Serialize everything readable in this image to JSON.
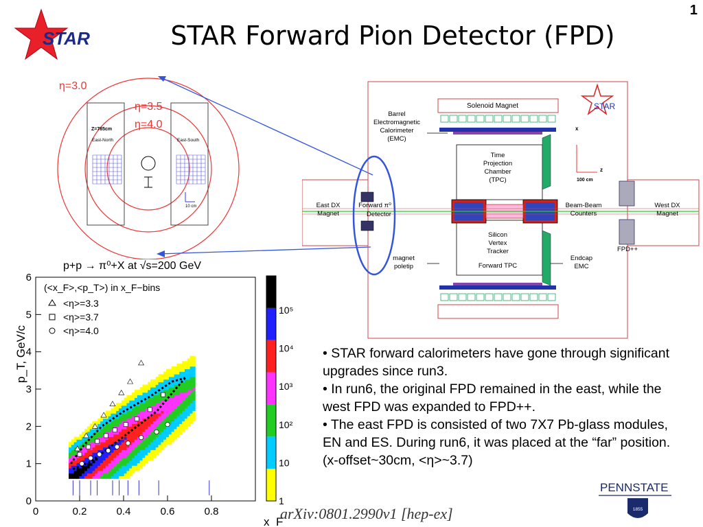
{
  "slide_number": "1",
  "title": "STAR Forward Pion Detector (FPD)",
  "logo_text": "STAR",
  "eta_figure": {
    "outer_label": "η=3.0",
    "middle_label": "η=3.5",
    "inner_label": "η=4.0",
    "z_label": "Z=785cm",
    "east_north": "East-North",
    "east_south": "East-South",
    "scale": "10 cm"
  },
  "detector": {
    "solenoid": "Solenoid Magnet",
    "barrel_emc": [
      "Barrel",
      "Electromagnetic",
      "Calorimeter",
      "(EMC)"
    ],
    "tpc": [
      "Time",
      "Projection",
      "Chamber",
      "(TPC)"
    ],
    "east_dx": [
      "East DX",
      "Magnet"
    ],
    "forward_detector": [
      "Forward π⁰",
      "Detector"
    ],
    "bbc": [
      "Beam-Beam",
      "Counters"
    ],
    "west_dx": [
      "West DX",
      "Magnet"
    ],
    "svt": [
      "Silicon",
      "Vertex",
      "Tracker"
    ],
    "ftpc": "Forward TPC",
    "poletip": [
      "magnet",
      "poletip"
    ],
    "endcap": [
      "Endcap",
      "EMC"
    ],
    "fpdpp": "FPD++",
    "axis_x": "x",
    "axis_z": "z",
    "scale": "100 cm",
    "star": "STAR"
  },
  "plot": {
    "title": "p+p → π⁰+X at √s=200 GeV",
    "legend_header": "(<x_F>,<p_T>) in x_F−bins",
    "legend_items": [
      {
        "symbol": "triangle",
        "label": "<η>=3.3"
      },
      {
        "symbol": "square",
        "label": "<η>=3.7"
      },
      {
        "symbol": "circle",
        "label": "<η>=4.0"
      }
    ],
    "xlabel": "x_F",
    "ylabel": "p_T, GeV/c",
    "x_ticks": [
      "0",
      "0.2",
      "0.4",
      "0.6",
      "0.8"
    ],
    "y_ticks": [
      "0",
      "1",
      "2",
      "3",
      "4",
      "5",
      "6"
    ],
    "colorbar_labels": [
      "1",
      "10",
      "10²",
      "10³",
      "10⁴",
      "10⁵"
    ],
    "colors": {
      "band_1": "#ffff00",
      "band_2": "#00ccff",
      "band_3": "#22cc22",
      "band_4": "#ff33ff",
      "band_5": "#ff2020",
      "band_6": "#2020ff",
      "band_7": "#000000"
    }
  },
  "chart_data": {
    "type": "heatmap",
    "title": "p+p → π⁰+X at √s=200 GeV",
    "xlabel": "x_F",
    "ylabel": "p_T, GeV/c",
    "xlim": [
      0,
      1.0
    ],
    "ylim": [
      0,
      6
    ],
    "colorbar_scale": "log",
    "colorbar_range": [
      1,
      1000000
    ],
    "series": [
      {
        "name": "<η>=3.3",
        "marker": "triangle",
        "x": [
          0.19,
          0.23,
          0.27,
          0.31,
          0.35,
          0.39,
          0.43,
          0.48
        ],
        "y": [
          1.4,
          1.75,
          2.0,
          2.3,
          2.6,
          2.9,
          3.2,
          3.7
        ]
      },
      {
        "name": "<η>=3.7",
        "marker": "square",
        "x": [
          0.2,
          0.24,
          0.28,
          0.32,
          0.36,
          0.41,
          0.46,
          0.52,
          0.58
        ],
        "y": [
          1.25,
          1.45,
          1.6,
          1.75,
          1.9,
          2.05,
          2.2,
          2.45,
          2.85
        ]
      },
      {
        "name": "<η>=4.0",
        "marker": "circle",
        "x": [
          0.21,
          0.25,
          0.29,
          0.33,
          0.37,
          0.42,
          0.48,
          0.55,
          0.6
        ],
        "y": [
          1.0,
          1.15,
          1.25,
          1.35,
          1.45,
          1.55,
          1.7,
          1.85,
          2.05
        ]
      }
    ],
    "bin_edges_x": [
      0.17,
      0.2,
      0.25,
      0.28,
      0.35,
      0.38,
      0.42,
      0.47,
      0.56,
      0.79
    ]
  },
  "bullets": [
    "• STAR forward calorimeters have gone through significant upgrades since run3.",
    "• In run6, the original FPD remained in the east, while the west FPD was expanded to FPD++.",
    "• The east FPD is consisted of two 7X7 Pb-glass modules, EN and ES. During run6, it was placed at the “far” position. (x-offset~30cm, <η>~3.7)"
  ],
  "arxiv": "arXiv:0801.2990v1 [hep-ex]",
  "pennstate": {
    "name": "PENNSTATE",
    "year": "1855"
  }
}
